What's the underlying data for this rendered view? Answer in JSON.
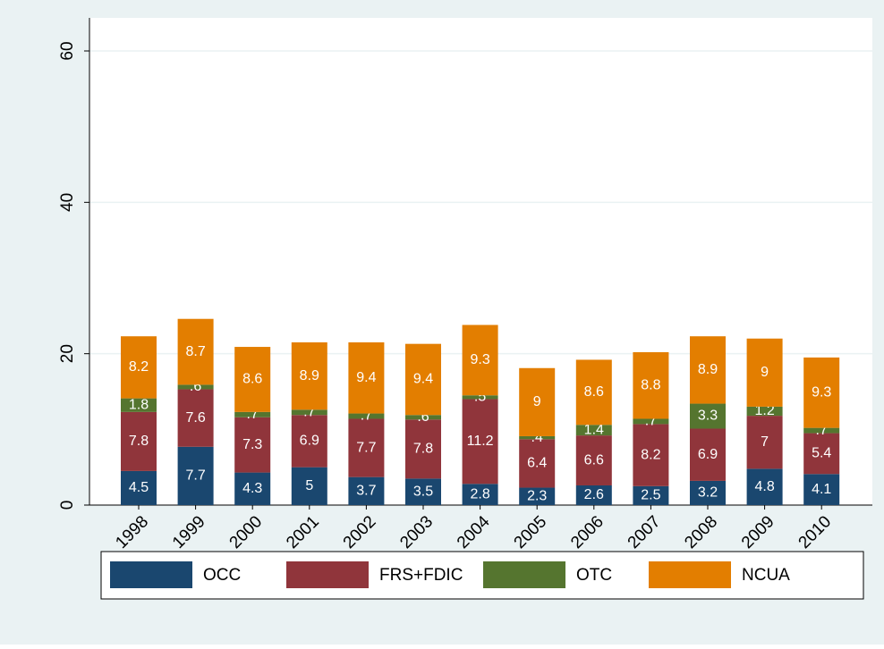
{
  "chart_data": {
    "type": "stacked_bar",
    "categories": [
      "1998",
      "1999",
      "2000",
      "2001",
      "2002",
      "2003",
      "2004",
      "2005",
      "2006",
      "2007",
      "2008",
      "2009",
      "2010"
    ],
    "series": [
      {
        "name": "OCC",
        "color": "#1a476f",
        "values": [
          4.5,
          7.7,
          4.3,
          5,
          3.7,
          3.5,
          2.8,
          2.3,
          2.6,
          2.5,
          3.2,
          4.8,
          4.1
        ]
      },
      {
        "name": "FRS+FDIC",
        "color": "#90353b",
        "values": [
          7.8,
          7.6,
          7.3,
          6.9,
          7.7,
          7.8,
          11.2,
          6.4,
          6.6,
          8.2,
          6.9,
          7,
          5.4
        ]
      },
      {
        "name": "OTC",
        "color": "#55752f",
        "values": [
          1.8,
          0.6,
          0.7,
          0.7,
          0.7,
          0.6,
          0.5,
          0.4,
          1.4,
          0.7,
          3.3,
          1.2,
          0.7
        ],
        "value_labels": [
          "1.8",
          ".6",
          ".7",
          ".7",
          ".7",
          ".6",
          ".5",
          ".4",
          "1.4",
          ".7",
          "3.3",
          "1.2",
          ".7"
        ]
      },
      {
        "name": "NCUA",
        "color": "#e37e00",
        "values": [
          8.2,
          8.7,
          8.6,
          8.9,
          9.4,
          9.4,
          9.3,
          9,
          8.6,
          8.8,
          8.9,
          9,
          9.3
        ]
      }
    ],
    "ylim": [
      0,
      60
    ],
    "yticks": [
      0,
      20,
      40,
      60
    ],
    "grid": true
  }
}
